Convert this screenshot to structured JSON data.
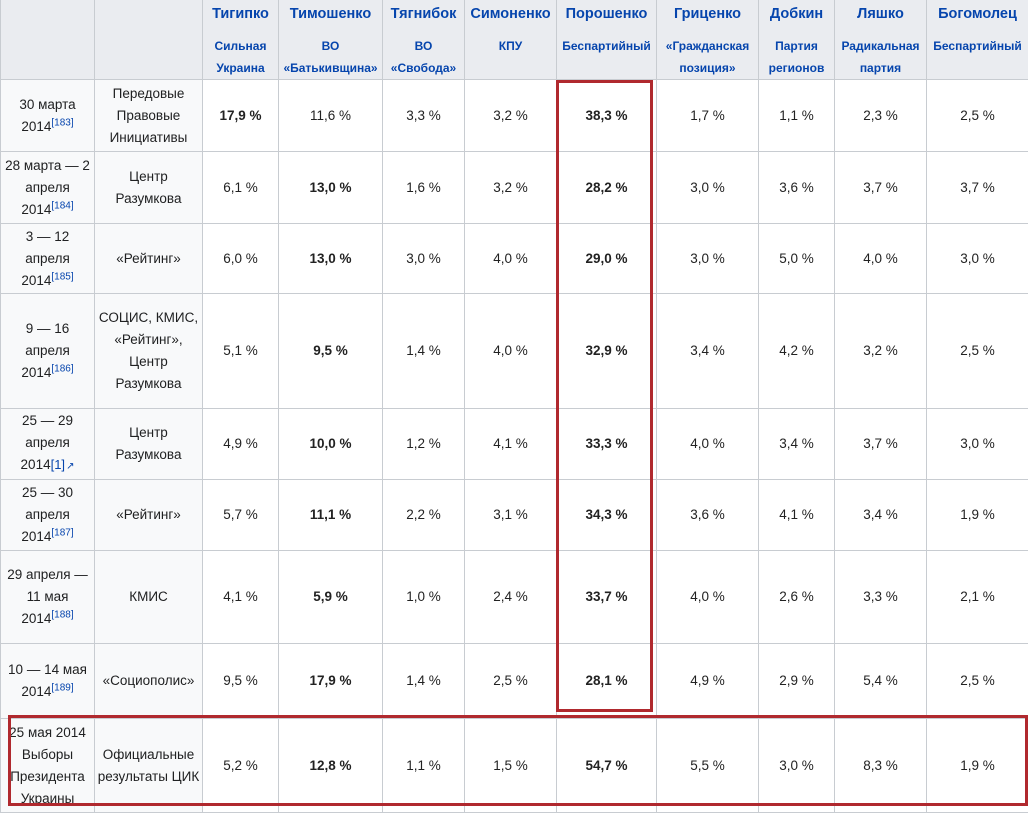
{
  "candidates": [
    {
      "name": "Тигипко",
      "party": "Сильная Украина"
    },
    {
      "name": "Тимошенко",
      "party": "ВО «Батькивщина»"
    },
    {
      "name": "Тягнибок",
      "party": "ВО «Свобода»"
    },
    {
      "name": "Симоненко",
      "party": "КПУ"
    },
    {
      "name": "Порошенко",
      "party": "Беспартийный"
    },
    {
      "name": "Гриценко",
      "party": "«Гражданская позиция»"
    },
    {
      "name": "Добкин",
      "party": "Партия регионов"
    },
    {
      "name": "Ляшко",
      "party": "Радикальная партия"
    },
    {
      "name": "Богомолец",
      "party": "Беспартийный"
    }
  ],
  "rows": [
    {
      "date": "30 марта 2014",
      "ref": "[183]",
      "poll": "Передовые Правовые Инициативы",
      "values": [
        "17,9 %",
        "11,6 %",
        "3,3 %",
        "3,2 %",
        "38,3 %",
        "1,7 %",
        "1,1 %",
        "2,3 %",
        "2,5 %"
      ]
    },
    {
      "date": "28 марта — 2 апреля 2014",
      "ref": "[184]",
      "poll": "Центр Разумкова",
      "values": [
        "6,1 %",
        "13,0 %",
        "1,6 %",
        "3,2 %",
        "28,2 %",
        "3,0 %",
        "3,6 %",
        "3,7 %",
        "3,7 %"
      ]
    },
    {
      "date": "3 — 12 апреля 2014",
      "ref": "[185]",
      "poll": "«Рейтинг»",
      "values": [
        "6,0 %",
        "13,0 %",
        "3,0 %",
        "4,0 %",
        "29,0 %",
        "3,0 %",
        "5,0 %",
        "4,0 %",
        "3,0 %"
      ]
    },
    {
      "date": "9 — 16 апреля 2014",
      "ref": "[186]",
      "poll": "СОЦИС, КМИС, «Рейтинг», Центр Разумкова",
      "values": [
        "5,1 %",
        "9,5 %",
        "1,4 %",
        "4,0 %",
        "32,9 %",
        "3,4 %",
        "4,2 %",
        "3,2 %",
        "2,5 %"
      ]
    },
    {
      "date": "25 — 29 апреля 2014",
      "ref": "[1]",
      "poll": "Центр Разумкова",
      "values": [
        "4,9 %",
        "10,0 %",
        "1,2 %",
        "4,1 %",
        "33,3 %",
        "4,0 %",
        "3,4 %",
        "3,7 %",
        "3,0 %"
      ]
    },
    {
      "date": "25 — 30 апреля 2014",
      "ref": "[187]",
      "poll": "«Рейтинг»",
      "values": [
        "5,7 %",
        "11,1 %",
        "2,2 %",
        "3,1 %",
        "34,3 %",
        "3,6 %",
        "4,1 %",
        "3,4 %",
        "1,9 %"
      ]
    },
    {
      "date": "29 апреля — 11 мая 2014",
      "ref": "[188]",
      "poll": "КМИС",
      "values": [
        "4,1 %",
        "5,9 %",
        "1,0 %",
        "2,4 %",
        "33,7 %",
        "4,0 %",
        "2,6 %",
        "3,3 %",
        "2,1 %"
      ]
    },
    {
      "date": "10 — 14 мая 2014",
      "ref": "[189]",
      "poll": "«Социополис»",
      "values": [
        "9,5 %",
        "17,9 %",
        "1,4 %",
        "2,5 %",
        "28,1 %",
        "4,9 %",
        "2,9 %",
        "5,4 %",
        "2,5 %"
      ]
    },
    {
      "date": "25 мая 2014 Выборы Президента Украины",
      "ref": "",
      "poll": "Официальные результаты ЦИК",
      "values": [
        "5,2 %",
        "12,8 %",
        "1,1 %",
        "1,5 %",
        "54,7 %",
        "5,5 %",
        "3,0 %",
        "8,3 %",
        "1,9 %"
      ]
    }
  ]
}
